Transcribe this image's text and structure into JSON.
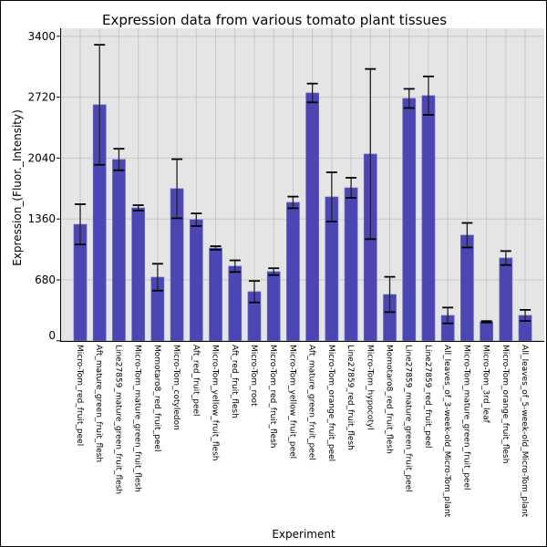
{
  "chart_data": {
    "type": "bar",
    "title": "Expression data from various tomato plant tissues",
    "xlabel": "Experiment",
    "ylabel": "Expression_(Fluor._Intensity)",
    "ylim": [
      0,
      3400
    ],
    "yticks": [
      0,
      680,
      1360,
      2040,
      2720,
      3400
    ],
    "grid": true,
    "colors": {
      "bar": "#4b46b2",
      "bar_edge": "#6a66c4",
      "plot_bg": "#e5e5e5",
      "grid": "#c8c8c8",
      "error": "#000000"
    },
    "categories": [
      "Micro-Tom_red_fruit_peel",
      "Aft_mature_green_fruit_flesh",
      "Line27859_mature_green_fruit_flesh",
      "Micro-Tom_mature_green_fruit_flesh",
      "Momotaro8_red_fruit_peel",
      "Micro-Tom_cotyledon",
      "Aft_red_fruit_peel",
      "Micro-Tom_yellow_fruit_flesh",
      "Aft_red_fruit_flesh",
      "Micro-Tom_root",
      "Micro-Tom_red_fruit_flesh",
      "Micro-Tom_yellow_fruit_peel",
      "Aft_mature_green_fruit_peel",
      "Micro-Tom_orange_fruit_peel",
      "Line27859_red_fruit_flesh",
      "Micro-Tom_hypocotyl",
      "Momotaro8_red_fruit_flesh",
      "Line27859_mature_green_fruit_peel",
      "Line27859_red_fruit_peel",
      "All_leaves_of_3-week-old_Micro-Tom_plant",
      "Micro-Tom_mature_green_fruit_peel",
      "Micro-Tom_3rd_leaf",
      "Micro-Tom_orange_fruit_flesh",
      "All_leaves_of_5-week-old_Micro-Tom_plant"
    ],
    "values": [
      1300,
      2635,
      2024,
      1484,
      710,
      1698,
      1352,
      1036,
      833,
      548,
      772,
      1545,
      2767,
      1606,
      1708,
      2085,
      517,
      2706,
      2737,
      283,
      1179,
      212,
      924,
      283
    ],
    "errors": [
      225,
      670,
      120,
      30,
      150,
      330,
      70,
      20,
      65,
      120,
      38,
      65,
      105,
      275,
      112,
      950,
      197,
      107,
      215,
      88,
      137,
      8,
      78,
      62
    ]
  }
}
